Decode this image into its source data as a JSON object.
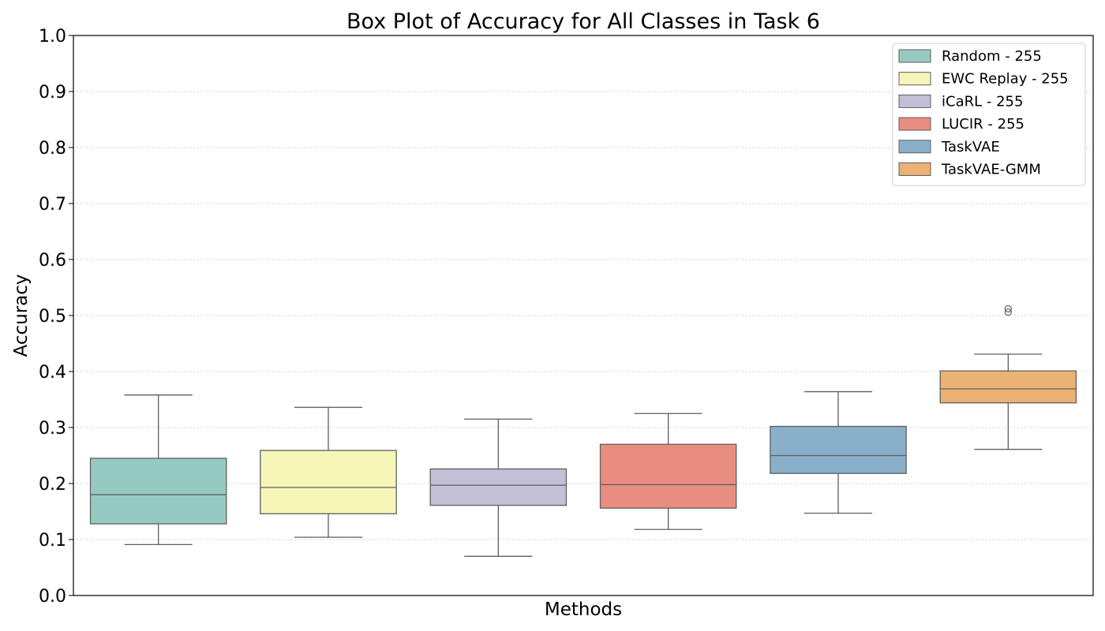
{
  "chart_data": {
    "type": "box",
    "title": "Box Plot of Accuracy for All Classes in Task 6",
    "xlabel": "Methods",
    "ylabel": "Accuracy",
    "ylim": [
      0.0,
      1.0
    ],
    "yticks": [
      "0.0",
      "0.1",
      "0.2",
      "0.3",
      "0.4",
      "0.5",
      "0.6",
      "0.7",
      "0.8",
      "0.9",
      "1.0"
    ],
    "grid": "horizontal dotted",
    "legend_position": "top-right",
    "series": [
      {
        "name": "Random - 255",
        "color": "#96cac0",
        "whisker_low": 0.091,
        "q1": 0.128,
        "median": 0.18,
        "q3": 0.245,
        "whisker_high": 0.358,
        "outliers": []
      },
      {
        "name": "EWC Replay - 255",
        "color": "#f6f6b9",
        "whisker_low": 0.104,
        "q1": 0.146,
        "median": 0.193,
        "q3": 0.259,
        "whisker_high": 0.336,
        "outliers": []
      },
      {
        "name": "iCaRL - 255",
        "color": "#c2bfd7",
        "whisker_low": 0.07,
        "q1": 0.161,
        "median": 0.197,
        "q3": 0.226,
        "whisker_high": 0.315,
        "outliers": []
      },
      {
        "name": "LUCIR - 255",
        "color": "#e98d81",
        "whisker_low": 0.118,
        "q1": 0.156,
        "median": 0.198,
        "q3": 0.27,
        "whisker_high": 0.325,
        "outliers": []
      },
      {
        "name": "TaskVAE",
        "color": "#89b0cb",
        "whisker_low": 0.147,
        "q1": 0.218,
        "median": 0.25,
        "q3": 0.302,
        "whisker_high": 0.364,
        "outliers": []
      },
      {
        "name": "TaskVAE-GMM",
        "color": "#ecb273",
        "whisker_low": 0.261,
        "q1": 0.344,
        "median": 0.369,
        "q3": 0.401,
        "whisker_high": 0.431,
        "outliers": [
          0.506,
          0.512
        ]
      }
    ]
  }
}
